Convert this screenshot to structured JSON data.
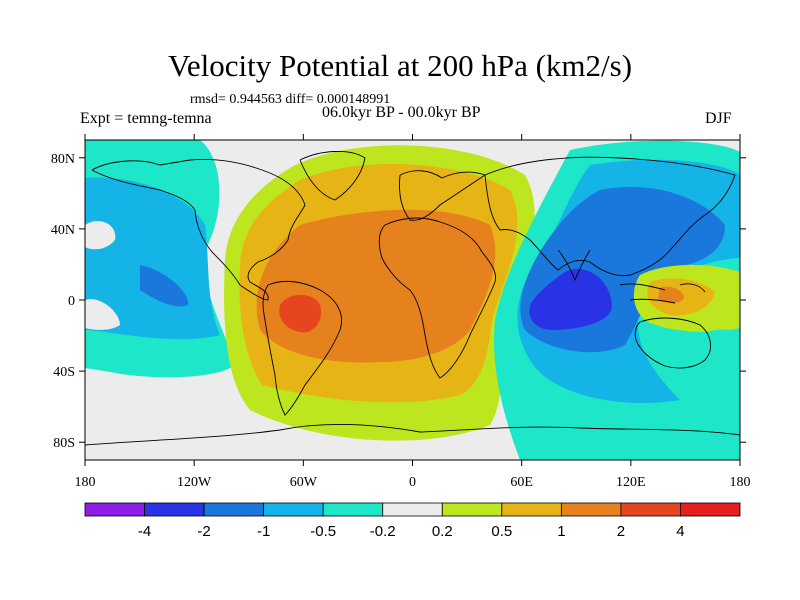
{
  "title": "Velocity Potential at 200 hPa (km2/s)",
  "stats": "rmsd= 0.944563 diff= 0.000148991",
  "experiment": "Expt = temng-temna",
  "period": "06.0kyr BP - 00.0kyr BP",
  "season": "DJF",
  "map": {
    "lon_range": [
      -180,
      180
    ],
    "lat_range": [
      -90,
      90
    ],
    "lon_ticks": [
      {
        "value": -180,
        "label": "180"
      },
      {
        "value": -120,
        "label": "120W"
      },
      {
        "value": -60,
        "label": "60W"
      },
      {
        "value": 0,
        "label": "0"
      },
      {
        "value": 60,
        "label": "60E"
      },
      {
        "value": 120,
        "label": "120E"
      },
      {
        "value": 180,
        "label": "180"
      }
    ],
    "lat_ticks": [
      {
        "value": 80,
        "label": "80N"
      },
      {
        "value": 40,
        "label": "40N"
      },
      {
        "value": 0,
        "label": "0"
      },
      {
        "value": -40,
        "label": "40S"
      },
      {
        "value": -80,
        "label": "80S"
      }
    ]
  },
  "colorbar": {
    "colors": [
      "#8c1ee6",
      "#2a32e6",
      "#1a78dc",
      "#14b4e6",
      "#1ee6c8",
      "#ececec",
      "#bee61e",
      "#e6b414",
      "#e6821e",
      "#e6461e",
      "#e61e1e"
    ],
    "labels": [
      "-4",
      "-2",
      "-1",
      "-0.5",
      "-0.2",
      "0.2",
      "0.5",
      "1",
      "2",
      "4"
    ]
  },
  "chart_data": {
    "type": "filled-contour-map",
    "variable": "Velocity Potential at 200 hPa",
    "units": "km2/s",
    "levels": [
      -4,
      -2,
      -1,
      -0.5,
      -0.2,
      0.2,
      0.5,
      1,
      2,
      4
    ],
    "features": [
      {
        "name": "Atlantic-Africa positive anomaly",
        "center_lon": -50,
        "center_lat": -8,
        "peak_level": "2 to 4"
      },
      {
        "name": "Indian Ocean negative anomaly",
        "center_lon": 90,
        "center_lat": -5,
        "peak_level": "-4 to -2"
      },
      {
        "name": "Maritime Continent positive anomaly",
        "center_lon": 145,
        "center_lat": 0,
        "peak_level": "1 to 2"
      },
      {
        "name": "Central Pacific negative anomaly",
        "center_lon": -150,
        "center_lat": 0,
        "peak_level": "-2 to -1"
      }
    ]
  }
}
